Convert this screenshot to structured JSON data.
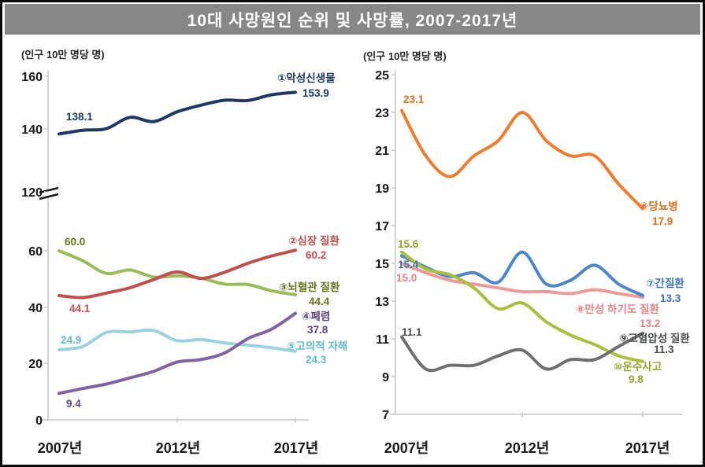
{
  "title": "10대 사망원인 순위 및 사망률, 2007-2017년",
  "colors": {
    "banner_bg": "#878787",
    "banner_text": "#ffffff",
    "axis_line": "#c6c6c6",
    "axis_text": "#1a1a1a",
    "frame": "#0a0a0a"
  },
  "chart_data": [
    {
      "type": "line",
      "position": "left",
      "unit_label": "(인구 10만 명당 명)",
      "x": [
        2007,
        2008,
        2009,
        2010,
        2011,
        2012,
        2013,
        2014,
        2015,
        2016,
        2017
      ],
      "x_tick_labels": [
        "2007년",
        "2012년",
        "2017년"
      ],
      "x_tick_years": [
        2007,
        2012,
        2017
      ],
      "y_axis": {
        "broken": true,
        "ticks": [
          "160",
          "140",
          "120",
          "60",
          "40",
          "20",
          "0"
        ],
        "upper_range": [
          120,
          160
        ],
        "lower_range": [
          0,
          60
        ]
      },
      "series": [
        {
          "rank": 1,
          "name": "①악성신생물",
          "scale": "upper",
          "color": "#1f3864",
          "label_color": "#1f3864",
          "start_label": "138.1",
          "end_label": "153.9",
          "values": [
            138.1,
            139.5,
            140.1,
            144.4,
            142.8,
            146.5,
            149.0,
            150.9,
            150.8,
            153.0,
            153.9
          ]
        },
        {
          "rank": 2,
          "name": "②심장 질환",
          "scale": "lower",
          "color": "#c0504d",
          "label_color": "#c0504d",
          "start_label": "44.1",
          "end_label": "60.2",
          "values": [
            44.1,
            43.4,
            45.0,
            46.9,
            49.8,
            52.5,
            50.2,
            52.4,
            55.6,
            58.2,
            60.2
          ]
        },
        {
          "rank": 3,
          "name": "③뇌혈관 질환",
          "scale": "lower",
          "color": "#9bbb59",
          "label_color": "#64731f",
          "start_label": "60.0",
          "end_label": "44.4",
          "values": [
            60.0,
            56.5,
            52.0,
            53.2,
            50.7,
            51.1,
            50.3,
            48.2,
            48.0,
            45.8,
            44.4
          ]
        },
        {
          "rank": 4,
          "name": "④폐렴",
          "scale": "lower",
          "color": "#8064a2",
          "label_color": "#5f497a",
          "start_label": "9.4",
          "end_label": "37.8",
          "values": [
            9.4,
            11.1,
            12.7,
            14.9,
            17.2,
            20.5,
            21.4,
            23.7,
            28.9,
            32.2,
            37.8
          ]
        },
        {
          "rank": 5,
          "name": "⑤고의적 자해",
          "scale": "lower",
          "color": "#9ad1e0",
          "label_color": "#64b9d2",
          "start_label": "24.9",
          "end_label": "24.3",
          "values": [
            24.9,
            26.0,
            31.0,
            31.2,
            31.7,
            28.1,
            28.5,
            27.3,
            26.5,
            25.6,
            24.3
          ]
        }
      ]
    },
    {
      "type": "line",
      "position": "right",
      "unit_label": "(인구 10만 명당 명)",
      "x": [
        2007,
        2008,
        2009,
        2010,
        2011,
        2012,
        2013,
        2014,
        2015,
        2016,
        2017
      ],
      "x_tick_labels": [
        "2007년",
        "2012년",
        "2017년"
      ],
      "x_tick_years": [
        2007,
        2012,
        2017
      ],
      "y_axis": {
        "broken": false,
        "ticks": [
          "25",
          "23",
          "21",
          "19",
          "17",
          "15",
          "13",
          "11",
          "9",
          "7"
        ],
        "range": [
          7,
          25
        ]
      },
      "series": [
        {
          "rank": 6,
          "name": "⑥당뇨병",
          "scale": "main",
          "color": "#ed7d31",
          "label_color": "#e06f1f",
          "start_label": "23.1",
          "end_label": "17.9",
          "values": [
            23.1,
            20.7,
            19.6,
            20.7,
            21.5,
            23.0,
            21.5,
            20.7,
            20.7,
            19.2,
            17.9
          ]
        },
        {
          "rank": 7,
          "name": "⑦간질환",
          "scale": "main",
          "color": "#4e86c8",
          "label_color": "#3d74b5",
          "start_label": "15.4",
          "end_label": "13.3",
          "values": [
            15.4,
            14.8,
            14.3,
            14.5,
            14.0,
            15.6,
            13.9,
            14.1,
            14.9,
            13.9,
            13.3
          ]
        },
        {
          "rank": 8,
          "name": "⑧만성 하기도 질환",
          "scale": "main",
          "color": "#ee9a9a",
          "label_color": "#e08486",
          "start_label": "15.0",
          "end_label": "13.2",
          "values": [
            15.0,
            14.5,
            14.1,
            13.9,
            13.7,
            13.5,
            13.5,
            13.4,
            13.6,
            13.4,
            13.2
          ]
        },
        {
          "rank": 9,
          "name": "⑨고혈압성 질환",
          "scale": "main",
          "color": "#6f6f6f",
          "label_color": "#4d4d4d",
          "start_label": "11.1",
          "end_label": "11.3",
          "values": [
            11.1,
            9.4,
            9.6,
            9.6,
            10.1,
            10.4,
            9.4,
            9.9,
            9.9,
            10.6,
            11.3
          ]
        },
        {
          "rank": 10,
          "name": "⑩운수사고",
          "scale": "main",
          "color": "#aabf3c",
          "label_color": "#8fa52a",
          "start_label": "15.6",
          "end_label": "9.8",
          "values": [
            15.6,
            14.7,
            14.4,
            13.7,
            12.6,
            12.9,
            11.9,
            11.2,
            10.7,
            10.1,
            9.8
          ]
        }
      ]
    }
  ]
}
